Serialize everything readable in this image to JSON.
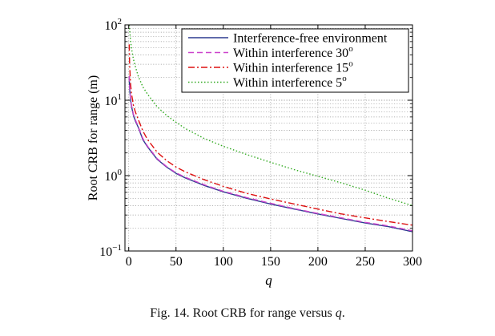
{
  "caption": {
    "prefix": "Fig. 14.   Root CRB for range versus ",
    "var": "q",
    "suffix": "."
  },
  "chart_data": {
    "type": "line",
    "title": "",
    "xlabel": "q",
    "ylabel": "Root CRB for range (m)",
    "xlim": [
      -4,
      300
    ],
    "ylim": [
      0.1,
      100
    ],
    "yscale": "log",
    "grid": true,
    "legend_position": "top-right",
    "x_ticks": [
      0,
      50,
      100,
      150,
      200,
      250,
      300
    ],
    "x_tick_labels": [
      "0",
      "50",
      "100",
      "150",
      "200",
      "250",
      "300"
    ],
    "y_ticks": [
      {
        "value": 0.1,
        "base": "10",
        "exp": "−1"
      },
      {
        "value": 1,
        "base": "10",
        "exp": "0"
      },
      {
        "value": 10,
        "base": "10",
        "exp": "1"
      },
      {
        "value": 100,
        "base": "10",
        "exp": "2"
      }
    ],
    "series": [
      {
        "name": "Interference-free environment",
        "color": "#2b3a8f",
        "dash": "solid",
        "x": [
          0.5,
          1,
          2,
          3,
          5,
          7,
          10,
          15,
          20,
          30,
          40,
          50,
          60,
          80,
          100,
          125,
          150,
          175,
          200,
          225,
          250,
          275,
          300
        ],
        "y": [
          20,
          14,
          10,
          8.2,
          6.3,
          5.3,
          4.4,
          3.0,
          2.4,
          1.65,
          1.3,
          1.07,
          0.93,
          0.74,
          0.61,
          0.5,
          0.42,
          0.36,
          0.31,
          0.27,
          0.235,
          0.21,
          0.18
        ]
      },
      {
        "name": "Within interference 30o",
        "color": "#cc44cc",
        "dash": "dashed",
        "x": [
          0.5,
          1,
          2,
          3,
          5,
          7,
          10,
          15,
          20,
          30,
          40,
          50,
          60,
          80,
          100,
          125,
          150,
          175,
          200,
          225,
          250,
          275,
          300
        ],
        "y": [
          21,
          14.5,
          10.3,
          8.4,
          6.5,
          5.5,
          4.5,
          3.1,
          2.45,
          1.68,
          1.32,
          1.09,
          0.95,
          0.755,
          0.62,
          0.51,
          0.43,
          0.365,
          0.315,
          0.275,
          0.24,
          0.215,
          0.185
        ]
      },
      {
        "name": "Within interference 15o",
        "color": "#dd1111",
        "dash": "dashdot",
        "x": [
          0.5,
          1,
          2,
          3,
          5,
          7,
          10,
          15,
          20,
          30,
          40,
          50,
          60,
          80,
          100,
          125,
          150,
          175,
          200,
          225,
          250,
          275,
          300
        ],
        "y": [
          55,
          28,
          16,
          12,
          8.5,
          7,
          5.6,
          3.9,
          3.0,
          2.05,
          1.58,
          1.3,
          1.12,
          0.88,
          0.72,
          0.58,
          0.49,
          0.42,
          0.36,
          0.31,
          0.275,
          0.245,
          0.22
        ]
      },
      {
        "name": "Within interference 5o",
        "color": "#33aa22",
        "dash": "dotted",
        "x": [
          0.5,
          1,
          2,
          3,
          5,
          7,
          10,
          15,
          20,
          30,
          40,
          50,
          60,
          80,
          100,
          125,
          150,
          175,
          200,
          225,
          250,
          275,
          300
        ],
        "y": [
          100,
          85,
          60,
          48,
          35,
          28,
          21,
          15,
          12,
          8.2,
          6.3,
          5.1,
          4.2,
          3.1,
          2.45,
          1.9,
          1.5,
          1.2,
          0.98,
          0.8,
          0.64,
          0.5,
          0.4
        ]
      }
    ],
    "legend": [
      {
        "label": "Interference-free environment",
        "sup": ""
      },
      {
        "label": "Within interference 30",
        "sup": "o"
      },
      {
        "label": "Within interference 15",
        "sup": "o"
      },
      {
        "label": "Within interference 5",
        "sup": "o"
      }
    ]
  }
}
